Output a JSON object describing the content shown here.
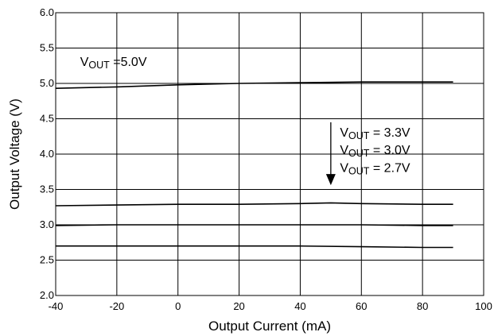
{
  "chart_data": {
    "type": "line",
    "xlabel": "Output Current (mA)",
    "ylabel": "Output Voltage (V)",
    "xlim": [
      -40,
      100
    ],
    "ylim": [
      2.0,
      6.0
    ],
    "xticks": [
      -40,
      -20,
      0,
      20,
      40,
      60,
      80,
      100
    ],
    "xtick_labels": [
      "-40",
      "-20",
      "0",
      "20",
      "40",
      "60",
      "80",
      "100"
    ],
    "yticks": [
      2.0,
      2.5,
      3.0,
      3.5,
      4.0,
      4.5,
      5.0,
      5.5,
      6.0
    ],
    "ytick_labels": [
      "2.0",
      "2.5",
      "3.0",
      "3.5",
      "4.0",
      "4.5",
      "5.0",
      "5.5",
      "6.0"
    ],
    "grid": true,
    "line_color": "#000000",
    "series": [
      {
        "x": [
          -40,
          -20,
          0,
          20,
          40,
          60,
          80,
          90
        ],
        "y": [
          4.93,
          4.95,
          4.98,
          5.0,
          5.01,
          5.02,
          5.02,
          5.02
        ]
      },
      {
        "x": [
          -40,
          -20,
          0,
          20,
          40,
          50,
          60,
          80,
          90
        ],
        "y": [
          3.27,
          3.28,
          3.29,
          3.29,
          3.3,
          3.31,
          3.3,
          3.29,
          3.29
        ]
      },
      {
        "x": [
          -40,
          -20,
          0,
          20,
          40,
          60,
          80,
          90
        ],
        "y": [
          2.99,
          3.0,
          3.0,
          3.0,
          3.0,
          3.0,
          2.99,
          2.99
        ]
      },
      {
        "x": [
          -40,
          -20,
          0,
          20,
          40,
          60,
          80,
          90
        ],
        "y": [
          2.7,
          2.7,
          2.7,
          2.7,
          2.7,
          2.69,
          2.68,
          2.68
        ]
      }
    ],
    "annotations": [
      {
        "id": "vout-5v",
        "prefix": "V",
        "sub": "OUT",
        "suffix": " =5.0V",
        "x": -32,
        "y": 5.25
      },
      {
        "id": "vout-3v3",
        "prefix": "V",
        "sub": "OUT",
        "suffix": " = 3.3V",
        "x": 53,
        "y": 4.25
      },
      {
        "id": "vout-3v0",
        "prefix": "V",
        "sub": "OUT",
        "suffix": " = 3.0V",
        "x": 53,
        "y": 4.0
      },
      {
        "id": "vout-2v7",
        "prefix": "V",
        "sub": "OUT",
        "suffix": " = 2.7V",
        "x": 53,
        "y": 3.75
      }
    ],
    "arrow": {
      "x": 50,
      "y_start": 4.45,
      "y_end": 3.56
    }
  }
}
